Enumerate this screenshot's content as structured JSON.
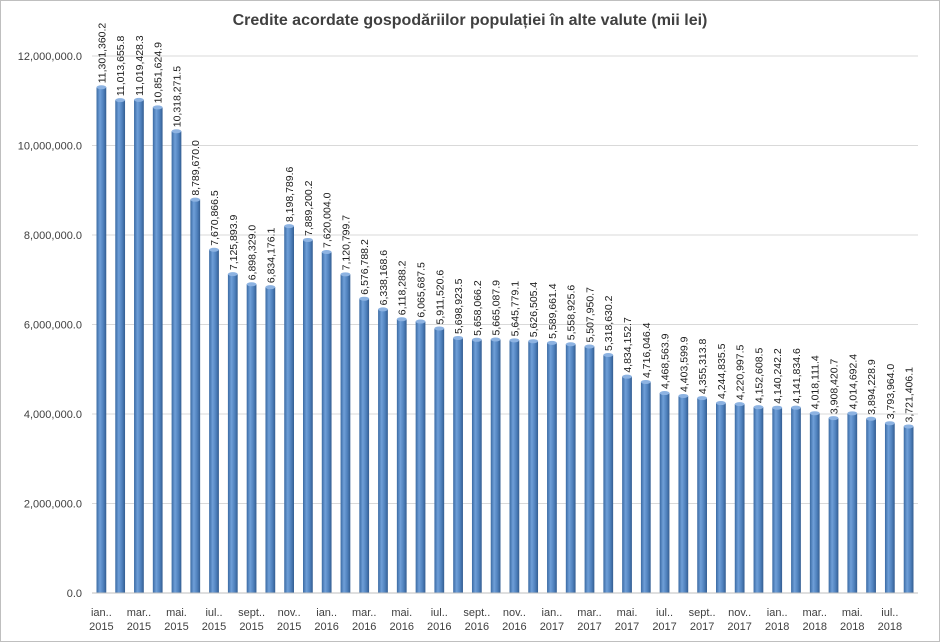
{
  "chart_data": {
    "type": "bar",
    "title": "Credite acordate gospodăriilor populației în alte valute (mii lei)",
    "xlabel": "",
    "ylabel": "",
    "ylim": [
      0,
      12000000
    ],
    "y_ticks": [
      "0.0",
      "2,000,000.0",
      "4,000,000.0",
      "6,000,000.0",
      "8,000,000.0",
      "10,000,000.0",
      "12,000,000.0"
    ],
    "grid": true,
    "legend": "none",
    "bar_color": "#4f81bd",
    "x_tick_labels": [
      {
        "month": "ian..",
        "year": "2015"
      },
      {
        "month": "mar..",
        "year": "2015"
      },
      {
        "month": "mai.",
        "year": "2015"
      },
      {
        "month": "iul..",
        "year": "2015"
      },
      {
        "month": "sept..",
        "year": "2015"
      },
      {
        "month": "nov..",
        "year": "2015"
      },
      {
        "month": "ian..",
        "year": "2016"
      },
      {
        "month": "mar..",
        "year": "2016"
      },
      {
        "month": "mai.",
        "year": "2016"
      },
      {
        "month": "iul..",
        "year": "2016"
      },
      {
        "month": "sept..",
        "year": "2016"
      },
      {
        "month": "nov..",
        "year": "2016"
      },
      {
        "month": "ian..",
        "year": "2017"
      },
      {
        "month": "mar..",
        "year": "2017"
      },
      {
        "month": "mai.",
        "year": "2017"
      },
      {
        "month": "iul..",
        "year": "2017"
      },
      {
        "month": "sept..",
        "year": "2017"
      },
      {
        "month": "nov..",
        "year": "2017"
      },
      {
        "month": "ian..",
        "year": "2018"
      },
      {
        "month": "mar..",
        "year": "2018"
      },
      {
        "month": "mai.",
        "year": "2018"
      },
      {
        "month": "iul..",
        "year": "2018"
      }
    ],
    "values": [
      11301360.2,
      11013655.8,
      11019428.3,
      10851624.9,
      10318271.5,
      8789670.0,
      7670866.5,
      7125893.9,
      6898329.0,
      6834176.1,
      8198789.6,
      7889200.2,
      7620004.0,
      7120799.7,
      6576788.2,
      6338168.6,
      6118288.2,
      6065687.5,
      5911520.6,
      5698923.5,
      5658066.2,
      5665087.9,
      5645779.1,
      5626505.4,
      5589661.4,
      5558925.6,
      5507950.7,
      5318630.2,
      4834152.7,
      4716046.4,
      4468563.9,
      4403599.9,
      4355313.8,
      4244835.5,
      4220997.5,
      4152608.5,
      4140242.2,
      4141834.6,
      4018111.4,
      3908420.7,
      4014692.4,
      3894228.9,
      3793964.0,
      3721406.1
    ],
    "data_labels": [
      "11,301,360.2",
      "11,013,655.8",
      "11,019,428.3",
      "10,851,624.9",
      "10,318,271.5",
      "8,789,670.0",
      "7,670,866.5",
      "7,125,893.9",
      "6,898,329.0",
      "6,834,176.1",
      "8,198,789.6",
      "7,889,200.2",
      "7,620,004.0",
      "7,120,799.7",
      "6,576,788.2",
      "6,338,168.6",
      "6,118,288.2",
      "6,065,687.5",
      "5,911,520.6",
      "5,698,923.5",
      "5,658,066.2",
      "5,665,087.9",
      "5,645,779.1",
      "5,626,505.4",
      "5,589,661.4",
      "5,558,925.6",
      "5,507,950.7",
      "5,318,630.2",
      "4,834,152.7",
      "4,716,046.4",
      "4,468,563.9",
      "4,403,599.9",
      "4,355,313.8",
      "4,244,835.5",
      "4,220,997.5",
      "4,152,608.5",
      "4,140,242.2",
      "4,141,834.6",
      "4,018,111.4",
      "3,908,420.7",
      "4,014,692.4",
      "3,894,228.9",
      "3,793,964.0",
      "3,721,406.1"
    ]
  }
}
